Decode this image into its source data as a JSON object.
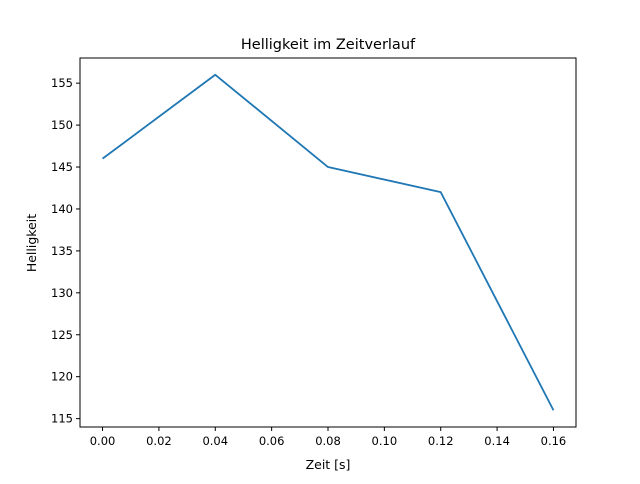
{
  "chart_data": {
    "type": "line",
    "title": "Helligkeit im Zeitverlauf",
    "xlabel": "Zeit [s]",
    "ylabel": "Helligkeit",
    "xlim": [
      -0.008,
      0.168
    ],
    "ylim": [
      114,
      158
    ],
    "xticks": [
      0.0,
      0.02,
      0.04,
      0.06,
      0.08,
      0.1,
      0.12,
      0.14,
      0.16
    ],
    "xtick_labels": [
      "0.00",
      "0.02",
      "0.04",
      "0.06",
      "0.08",
      "0.10",
      "0.12",
      "0.14",
      "0.16"
    ],
    "yticks": [
      115,
      120,
      125,
      130,
      135,
      140,
      145,
      150,
      155
    ],
    "ytick_labels": [
      "115",
      "120",
      "125",
      "130",
      "135",
      "140",
      "145",
      "150",
      "155"
    ],
    "grid": false,
    "series": [
      {
        "name": "Helligkeit",
        "color": "#1f77b4",
        "x": [
          0.0,
          0.04,
          0.08,
          0.12,
          0.16
        ],
        "y": [
          146,
          156,
          145,
          142,
          116
        ]
      }
    ]
  }
}
